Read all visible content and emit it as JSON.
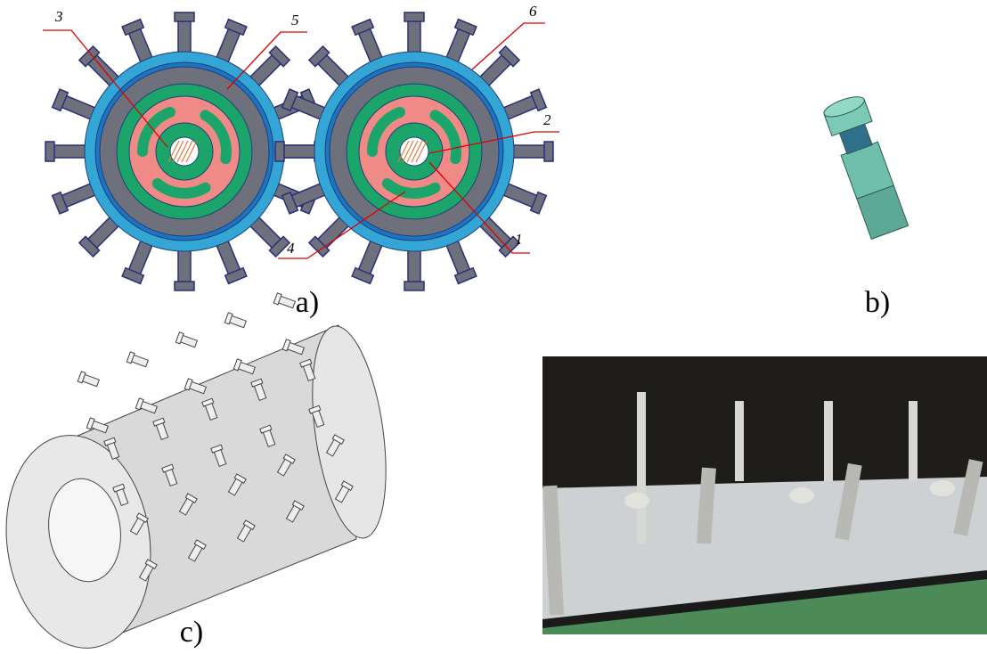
{
  "figure": {
    "panel_a": {
      "caption": "a)",
      "callouts": [
        "3",
        "5",
        "6",
        "2",
        "4",
        "1"
      ]
    },
    "panel_b": {
      "caption": "b)"
    },
    "panel_c": {
      "caption": "c)"
    }
  }
}
